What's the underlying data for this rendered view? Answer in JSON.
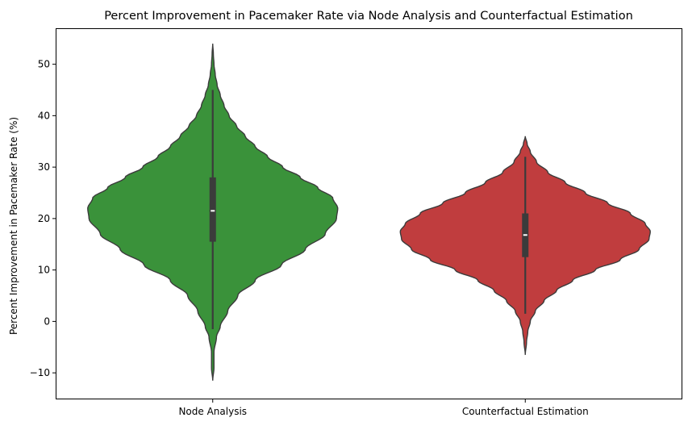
{
  "chart_data": {
    "type": "violin",
    "title": "Percent Improvement in Pacemaker Rate via Node Analysis and Counterfactual Estimation",
    "xlabel": "",
    "ylabel": "Percent Improvement in Pacemaker Rate (%)",
    "ylim": [
      -15,
      57
    ],
    "yticks": [
      -10,
      0,
      10,
      20,
      30,
      40,
      50
    ],
    "categories": [
      "Node Analysis",
      "Counterfactual Estimation"
    ],
    "grid": false,
    "legend": "none",
    "series": [
      {
        "category": "Node Analysis",
        "color": "#3a923a",
        "min": -11.5,
        "max": 54,
        "whisker_low": -1.5,
        "whisker_high": 45,
        "q1": 15.5,
        "median": 21.5,
        "q3": 28,
        "density_profile": [
          [
            -11.5,
            0.0
          ],
          [
            -9,
            0.01
          ],
          [
            -6,
            0.01
          ],
          [
            -3,
            0.03
          ],
          [
            -1,
            0.06
          ],
          [
            2,
            0.12
          ],
          [
            5,
            0.2
          ],
          [
            8,
            0.34
          ],
          [
            11,
            0.55
          ],
          [
            14,
            0.74
          ],
          [
            17,
            0.9
          ],
          [
            20,
            0.99
          ],
          [
            22,
            1.0
          ],
          [
            24,
            0.96
          ],
          [
            26,
            0.84
          ],
          [
            28,
            0.7
          ],
          [
            30,
            0.56
          ],
          [
            32,
            0.44
          ],
          [
            34,
            0.34
          ],
          [
            36,
            0.26
          ],
          [
            38,
            0.19
          ],
          [
            40,
            0.13
          ],
          [
            42,
            0.09
          ],
          [
            44,
            0.06
          ],
          [
            46,
            0.035
          ],
          [
            48,
            0.02
          ],
          [
            50,
            0.01
          ],
          [
            52,
            0.005
          ],
          [
            54,
            0.0
          ]
        ]
      },
      {
        "category": "Counterfactual Estimation",
        "color": "#c03d3e",
        "min": -6.5,
        "max": 36,
        "whisker_low": 1.5,
        "whisker_high": 32,
        "q1": 12.5,
        "median": 16.8,
        "q3": 21,
        "density_profile": [
          [
            -6.5,
            0.0
          ],
          [
            -4,
            0.01
          ],
          [
            -2,
            0.02
          ],
          [
            0,
            0.04
          ],
          [
            2,
            0.08
          ],
          [
            4,
            0.15
          ],
          [
            6,
            0.25
          ],
          [
            8,
            0.38
          ],
          [
            10,
            0.56
          ],
          [
            12,
            0.76
          ],
          [
            14,
            0.91
          ],
          [
            16,
            0.99
          ],
          [
            17.5,
            1.0
          ],
          [
            19,
            0.96
          ],
          [
            21,
            0.84
          ],
          [
            23,
            0.66
          ],
          [
            25,
            0.48
          ],
          [
            27,
            0.32
          ],
          [
            29,
            0.18
          ],
          [
            31,
            0.09
          ],
          [
            33,
            0.04
          ],
          [
            34.5,
            0.015
          ],
          [
            36,
            0.0
          ]
        ]
      }
    ]
  }
}
